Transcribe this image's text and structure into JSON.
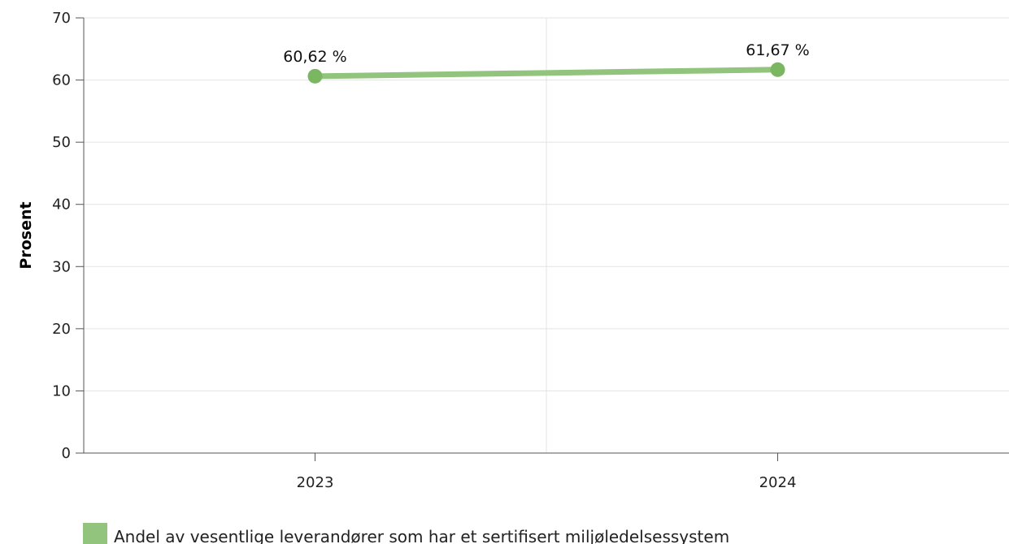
{
  "chart_data": {
    "type": "line",
    "ylabel": "Prosent",
    "xlabel": "",
    "categories": [
      "2023",
      "2024"
    ],
    "ylim": [
      0,
      70
    ],
    "yticks": [
      0,
      10,
      20,
      30,
      40,
      50,
      60,
      70
    ],
    "grid": true,
    "legend_position": "bottom-left",
    "series": [
      {
        "name": "Andel av vesentlige leverandører som har et sertifisert miljøledelsessystem",
        "values": [
          60.62,
          61.67
        ],
        "data_labels": [
          "60,62 %",
          "61,67 %"
        ],
        "color": "#92c47e",
        "marker_color": "#7bb661"
      }
    ]
  }
}
